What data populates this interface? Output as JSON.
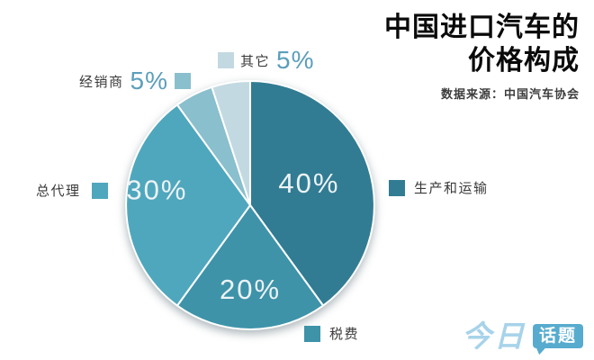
{
  "header": {
    "title_line1": "中国进口汽车的",
    "title_line2": "价格构成",
    "source": "数据来源：中国汽车协会"
  },
  "chart_data": {
    "type": "pie",
    "title": "中国进口汽车的价格构成",
    "source_note": "数据来源：中国汽车协会",
    "direction": "clockwise",
    "start_angle_deg": 0,
    "legend_position": "around",
    "slices": [
      {
        "name": "生产和运输",
        "value": 40,
        "label": "40%",
        "color": "#317C93",
        "inside_label": true
      },
      {
        "name": "税费",
        "value": 20,
        "label": "20%",
        "color": "#3E93A9",
        "inside_label": true
      },
      {
        "name": "总代理",
        "value": 30,
        "label": "30%",
        "color": "#4FA7BD",
        "inside_label": true
      },
      {
        "name": "经销商",
        "value": 5,
        "label": "5%",
        "color": "#8ABFCD",
        "inside_label": false
      },
      {
        "name": "其它",
        "value": 5,
        "label": "5%",
        "color": "#C3D9E2",
        "inside_label": false
      }
    ],
    "inside_label_color": "#EDF3F6",
    "stroke_color": "#FFFFFF",
    "pct_accent_color": "#5C9EBB"
  },
  "logo": {
    "part1": "今日",
    "part2": "话题",
    "part1_color": "#A7D3EA",
    "bubble_color": "#57ABCE"
  }
}
